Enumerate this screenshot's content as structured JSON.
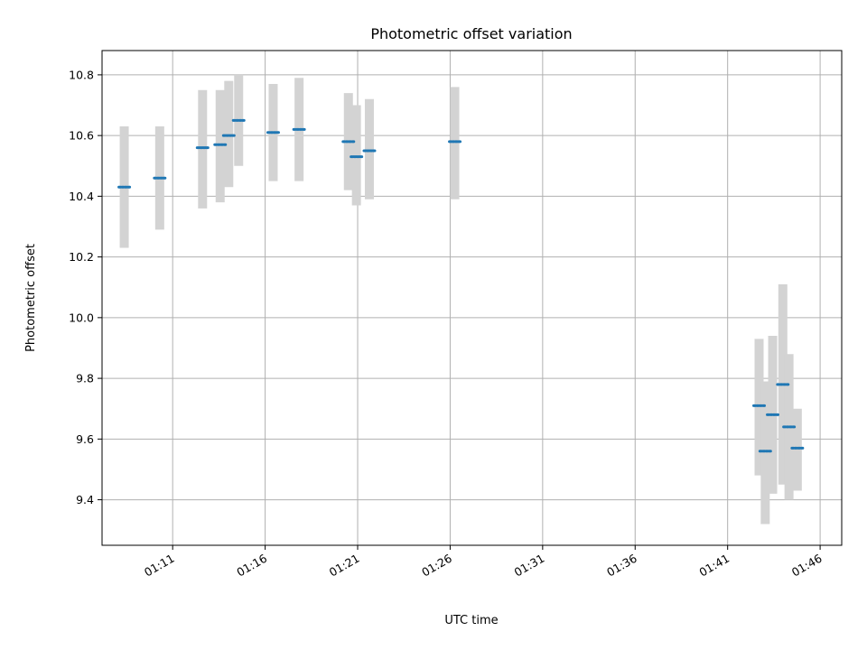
{
  "chart_data": {
    "type": "scatter",
    "title": "Photometric offset variation",
    "xlabel": "UTC time",
    "ylabel": "Photometric offset",
    "grid": true,
    "ylim": [
      9.25,
      10.88
    ],
    "xlim": [
      "01:07:11",
      "01:47:10"
    ],
    "x_ticks": [
      "01:11",
      "01:16",
      "01:21",
      "01:26",
      "01:31",
      "01:36",
      "01:41",
      "01:46"
    ],
    "y_ticks": [
      "9.4",
      "9.6",
      "9.8",
      "10.0",
      "10.2",
      "10.4",
      "10.6",
      "10.8"
    ],
    "colors": {
      "marker": "#1f77b4",
      "error_bar": "#d3d3d3",
      "grid": "#b0b0b0"
    },
    "points": [
      {
        "x": "01:08:23",
        "y": 10.43,
        "lo": 10.23,
        "hi": 10.63
      },
      {
        "x": "01:10:18",
        "y": 10.46,
        "lo": 10.29,
        "hi": 10.63
      },
      {
        "x": "01:12:37",
        "y": 10.56,
        "lo": 10.36,
        "hi": 10.75
      },
      {
        "x": "01:13:34",
        "y": 10.57,
        "lo": 10.38,
        "hi": 10.75
      },
      {
        "x": "01:14:02",
        "y": 10.6,
        "lo": 10.43,
        "hi": 10.78
      },
      {
        "x": "01:14:34",
        "y": 10.65,
        "lo": 10.5,
        "hi": 10.8
      },
      {
        "x": "01:16:26",
        "y": 10.61,
        "lo": 10.45,
        "hi": 10.77
      },
      {
        "x": "01:17:50",
        "y": 10.62,
        "lo": 10.45,
        "hi": 10.79
      },
      {
        "x": "01:20:30",
        "y": 10.58,
        "lo": 10.42,
        "hi": 10.74
      },
      {
        "x": "01:20:56",
        "y": 10.53,
        "lo": 10.37,
        "hi": 10.7
      },
      {
        "x": "01:21:38",
        "y": 10.55,
        "lo": 10.39,
        "hi": 10.72
      },
      {
        "x": "01:26:15",
        "y": 10.58,
        "lo": 10.39,
        "hi": 10.76
      },
      {
        "x": "01:42:42",
        "y": 9.71,
        "lo": 9.48,
        "hi": 9.93
      },
      {
        "x": "01:43:02",
        "y": 9.56,
        "lo": 9.32,
        "hi": 9.79
      },
      {
        "x": "01:43:26",
        "y": 9.68,
        "lo": 9.42,
        "hi": 9.94
      },
      {
        "x": "01:43:59",
        "y": 9.78,
        "lo": 9.45,
        "hi": 10.11
      },
      {
        "x": "01:44:19",
        "y": 9.64,
        "lo": 9.4,
        "hi": 9.88
      },
      {
        "x": "01:44:46",
        "y": 9.57,
        "lo": 9.43,
        "hi": 9.7
      }
    ]
  }
}
